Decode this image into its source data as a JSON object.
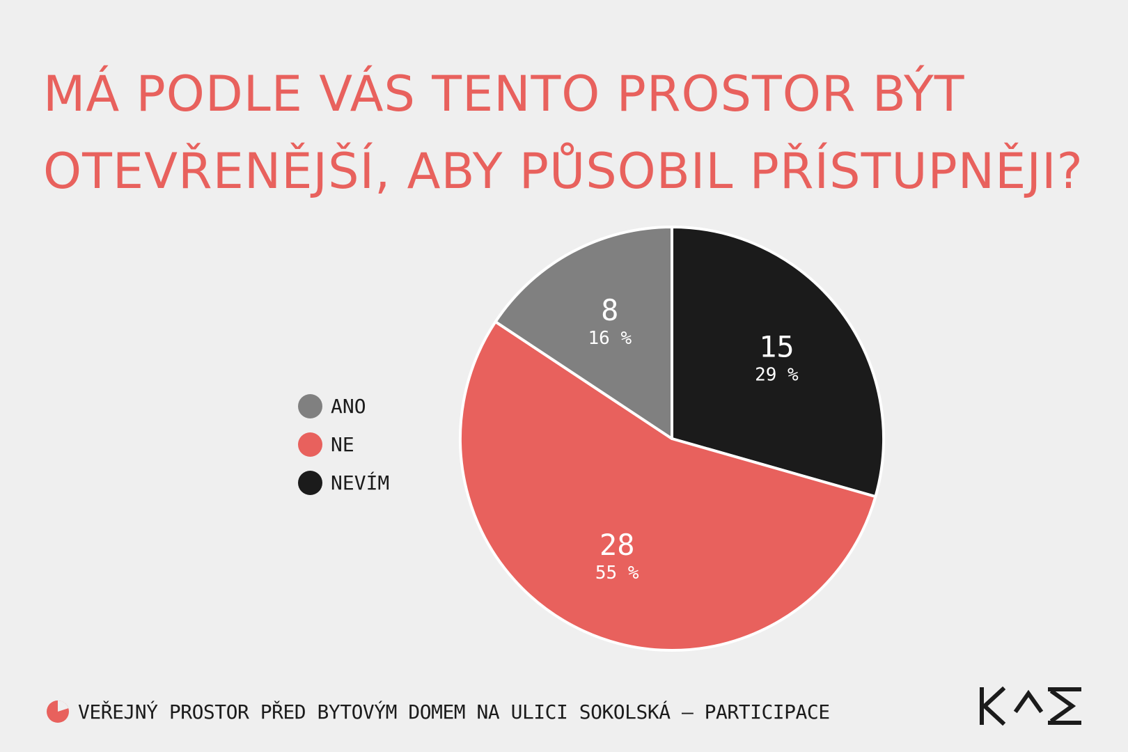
{
  "title": {
    "line1": "MÁ PODLE VÁS TENTO PROSTOR BÝT",
    "line2": "OTEVŘENĚJŠÍ, ABY PŮSOBIL PŘÍSTUPNĚJI?"
  },
  "legend": {
    "items": [
      {
        "label": "ANO",
        "color": "#808080"
      },
      {
        "label": "NE",
        "color": "#e8615d"
      },
      {
        "label": "NEVÍM",
        "color": "#1b1b1b"
      }
    ]
  },
  "chart_data": {
    "type": "pie",
    "title": "MÁ PODLE VÁS TENTO PROSTOR BÝT OTEVŘENĚJŠÍ, ABY PŮSOBIL PŘÍSTUPNĚJI?",
    "legend_position": "left",
    "slices": [
      {
        "label": "NEVÍM",
        "value": 15,
        "percent_label": "29 %",
        "color": "#1b1b1b"
      },
      {
        "label": "NE",
        "value": 28,
        "percent_label": "55 %",
        "color": "#e8615d"
      },
      {
        "label": "ANO",
        "value": 8,
        "percent_label": "16 %",
        "color": "#808080"
      }
    ]
  },
  "footer": {
    "text": "VEŘEJNÝ PROSTOR PŘED BYTOVÝM DOMEM NA ULICI SOKOLSKÁ – PARTICIPACE",
    "icon": "pie-chart-icon",
    "icon_color": "#e8615d"
  },
  "logo": {
    "text": "KAM",
    "color": "#1b1b1b"
  }
}
